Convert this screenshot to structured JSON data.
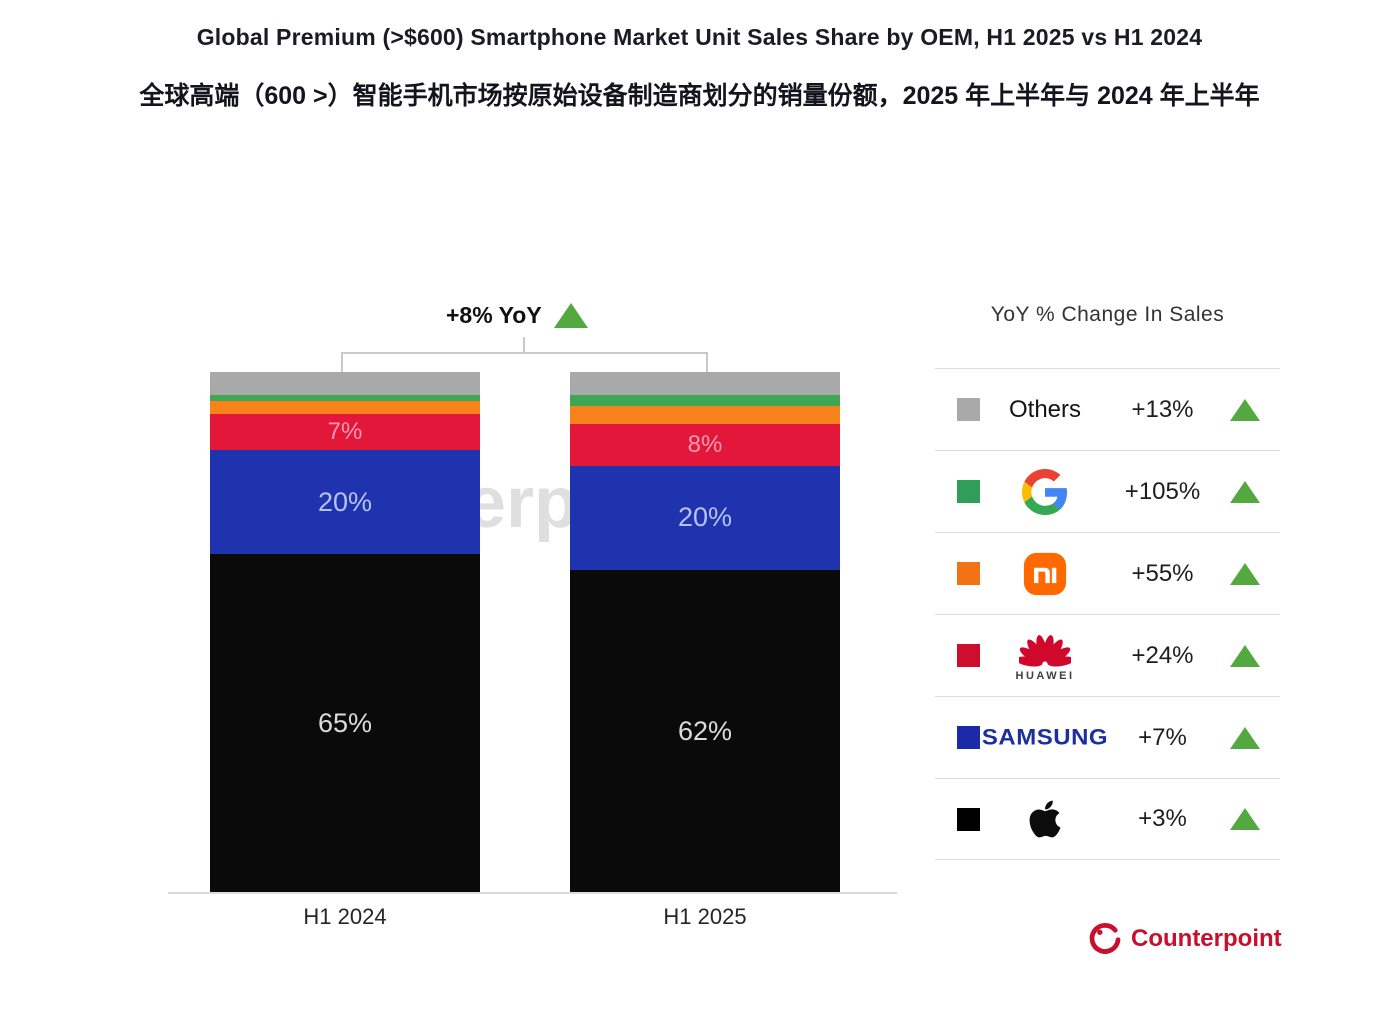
{
  "page": {
    "title_en": "Global Premium (>$600) Smartphone Market Unit Sales Share by OEM, H1 2025 vs H1 2024",
    "title_zh": "全球高端（600 >）智能手机市场按原始设备制造商划分的销量份额，2025 年上半年与 2024 年上半年"
  },
  "annotation": {
    "total_yoy_label": "+8% YoY"
  },
  "watermark_text": "Counterpoint",
  "chart_data": {
    "type": "bar",
    "subtype": "stacked-100-percent",
    "title": "Global Premium (>$600) Smartphone Market Unit Sales Share by OEM, H1 2025 vs H1 2024",
    "categories": [
      "H1 2024",
      "H1 2025"
    ],
    "unit": "% unit sales share",
    "total_yoy": "+8% YoY",
    "grid": false,
    "legend_position": "right",
    "series": [
      {
        "name": "Apple",
        "color": "#0a0a0a",
        "values": [
          65,
          62
        ],
        "labels": [
          "65%",
          "62%"
        ],
        "label_color": "#dcdcdc",
        "label_size": 27
      },
      {
        "name": "Samsung",
        "color": "#1f33ae",
        "values": [
          20,
          20
        ],
        "labels": [
          "20%",
          "20%"
        ],
        "label_color": "#b6c2f4",
        "label_size": 27
      },
      {
        "name": "Huawei",
        "color": "#e2173a",
        "values": [
          7,
          8
        ],
        "labels": [
          "7%",
          "8%"
        ],
        "label_color": "#f79ab0",
        "label_size": 24
      },
      {
        "name": "Xiaomi",
        "color": "#f8821c",
        "values": [
          2.5,
          3.5
        ],
        "labels": [
          "",
          ""
        ]
      },
      {
        "name": "Google",
        "color": "#3fa653",
        "values": [
          1,
          2
        ],
        "labels": [
          "",
          ""
        ]
      },
      {
        "name": "Others",
        "color": "#a9a9a9",
        "values": [
          4.5,
          4.5
        ],
        "labels": [
          "",
          ""
        ]
      }
    ]
  },
  "legend": {
    "title": "YoY % Change In Sales",
    "rows": [
      {
        "name": "Others",
        "change": "+13%",
        "swatch": "#a9a9a9"
      },
      {
        "name": "Google",
        "change": "+105%",
        "swatch": "#2f9e58"
      },
      {
        "name": "Xiaomi",
        "change": "+55%",
        "swatch": "#f47216"
      },
      {
        "name": "Huawei",
        "change": "+24%",
        "swatch": "#ce0e2d",
        "logo_text": "HUAWEI"
      },
      {
        "name": "Samsung",
        "change": "+7%",
        "swatch": "#1b2aa8",
        "wordmark": "SAMSUNG"
      },
      {
        "name": "Apple",
        "change": "+3%",
        "swatch": "#000000"
      }
    ]
  },
  "footer": {
    "brand": "Counterpoint"
  }
}
